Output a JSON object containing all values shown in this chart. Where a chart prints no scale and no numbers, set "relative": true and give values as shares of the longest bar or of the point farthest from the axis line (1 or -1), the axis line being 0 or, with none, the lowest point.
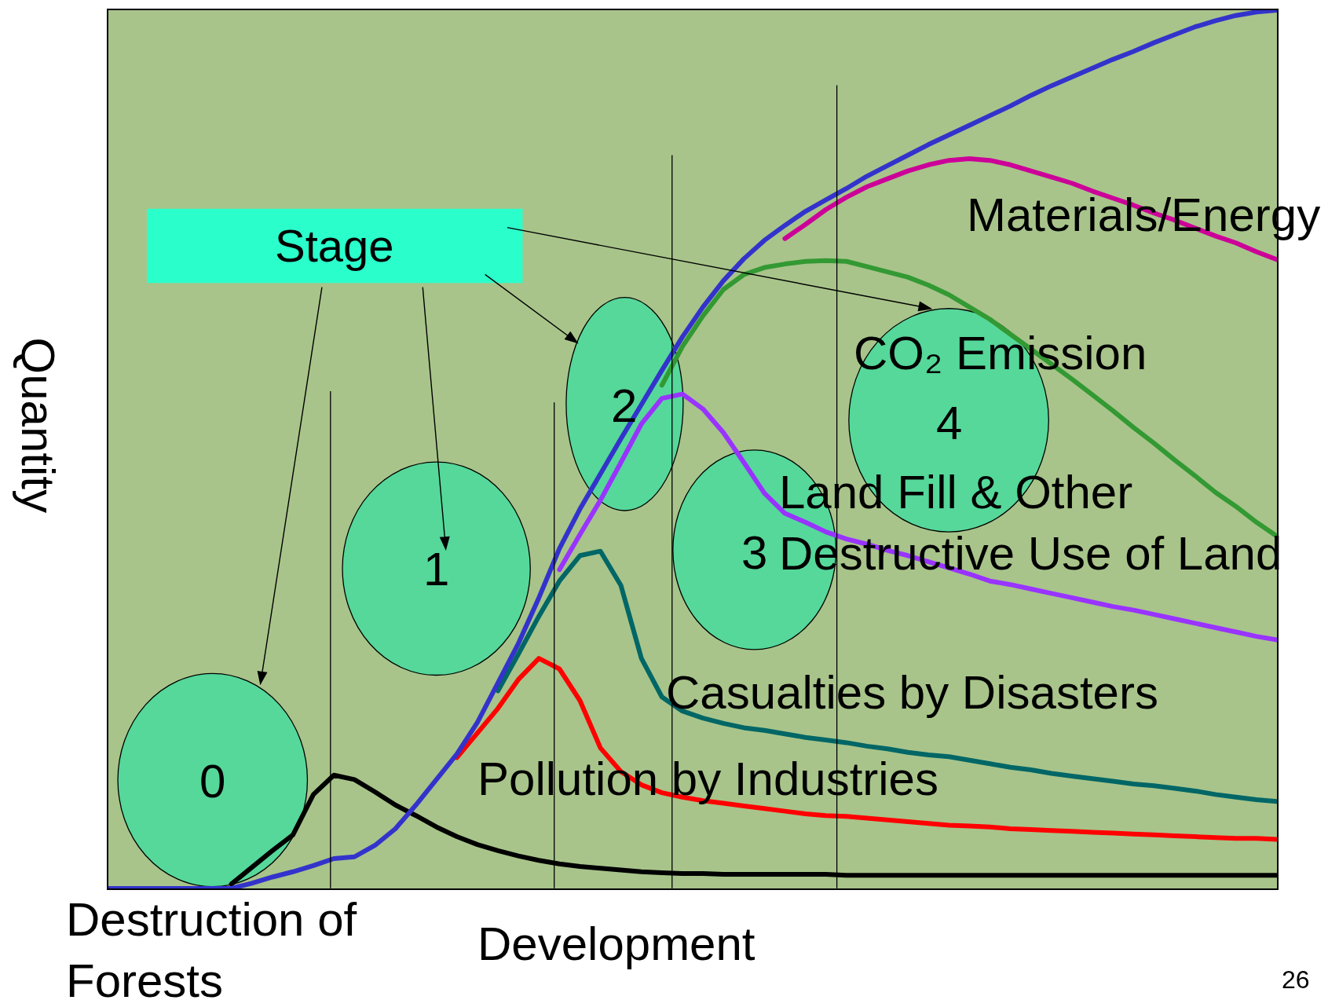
{
  "chart_data": {
    "type": "line",
    "relative": true,
    "xlabel": "Development",
    "ylabel": "Quantity",
    "categories": [
      null,
      null,
      null,
      null,
      null,
      null,
      null,
      null,
      null,
      null,
      null,
      null,
      null,
      null,
      null,
      null,
      null,
      null,
      null,
      null,
      null,
      null,
      null,
      null,
      null,
      null,
      null,
      null,
      null,
      null,
      null,
      null,
      null,
      null,
      null,
      null,
      null,
      null,
      null,
      null,
      null,
      null,
      null,
      null,
      null,
      null,
      null,
      null,
      null,
      null,
      null,
      null,
      null,
      null,
      null,
      null,
      null,
      null
    ],
    "series": [
      {
        "name": "Destruction of Forests",
        "color": "#000000",
        "values": [
          null,
          null,
          null,
          null,
          null,
          null,
          0.005,
          0.024,
          0.043,
          0.061,
          0.107,
          0.129,
          0.124,
          0.11,
          0.095,
          0.083,
          0.07,
          0.059,
          0.05,
          0.043,
          0.037,
          0.032,
          0.028,
          0.025,
          0.023,
          0.021,
          0.019,
          0.018,
          0.017,
          0.017,
          0.016,
          0.016,
          0.016,
          0.016,
          0.016,
          0.016,
          0.015,
          0.015,
          0.015,
          0.015,
          0.015,
          0.015,
          0.015,
          0.015,
          0.015,
          0.015,
          0.015,
          0.015,
          0.015,
          0.015,
          0.015,
          0.015,
          0.015,
          0.015,
          0.015,
          0.015,
          0.015,
          0.015
        ]
      },
      {
        "name": "Pollution by Industries",
        "color": "#ff0000",
        "values": [
          null,
          null,
          null,
          null,
          null,
          null,
          null,
          null,
          null,
          null,
          null,
          null,
          null,
          null,
          null,
          null,
          null,
          0.149,
          0.177,
          0.205,
          0.238,
          0.262,
          0.25,
          0.214,
          0.16,
          0.133,
          0.118,
          0.109,
          0.104,
          0.1,
          0.097,
          0.094,
          0.091,
          0.088,
          0.085,
          0.083,
          0.082,
          0.08,
          0.078,
          0.076,
          0.074,
          0.072,
          0.071,
          0.07,
          0.068,
          0.067,
          0.066,
          0.065,
          0.064,
          0.063,
          0.062,
          0.061,
          0.06,
          0.059,
          0.058,
          0.057,
          0.057,
          0.056
        ]
      },
      {
        "name": "Casualties by Disasters",
        "color": "#006666",
        "values": [
          null,
          null,
          null,
          null,
          null,
          null,
          null,
          null,
          null,
          null,
          null,
          null,
          null,
          null,
          null,
          null,
          null,
          null,
          null,
          0.225,
          0.267,
          0.31,
          0.35,
          0.379,
          0.384,
          0.345,
          0.262,
          0.218,
          0.202,
          0.194,
          0.188,
          0.183,
          0.18,
          0.176,
          0.172,
          0.169,
          0.166,
          0.162,
          0.159,
          0.155,
          0.152,
          0.15,
          0.146,
          0.142,
          0.138,
          0.135,
          0.131,
          0.128,
          0.125,
          0.122,
          0.119,
          0.117,
          0.114,
          0.111,
          0.107,
          0.104,
          0.101,
          0.099
        ]
      },
      {
        "name": "Land Fill & Other Destructive Use of Land",
        "color": "#9933ff",
        "values": [
          null,
          null,
          null,
          null,
          null,
          null,
          null,
          null,
          null,
          null,
          null,
          null,
          null,
          null,
          null,
          null,
          null,
          null,
          null,
          null,
          null,
          null,
          0.363,
          0.403,
          0.442,
          0.485,
          0.529,
          0.558,
          0.563,
          0.546,
          0.519,
          0.485,
          0.45,
          0.427,
          0.417,
          0.406,
          0.398,
          0.392,
          0.385,
          0.379,
          0.372,
          0.365,
          0.358,
          0.35,
          0.346,
          0.341,
          0.336,
          0.331,
          0.326,
          0.321,
          0.317,
          0.312,
          0.307,
          0.302,
          0.297,
          0.292,
          0.287,
          0.283
        ]
      },
      {
        "name": "CO₂ Emission",
        "color": "#339933",
        "values": [
          null,
          null,
          null,
          null,
          null,
          null,
          null,
          null,
          null,
          null,
          null,
          null,
          null,
          null,
          null,
          null,
          null,
          null,
          null,
          null,
          null,
          null,
          null,
          null,
          null,
          null,
          null,
          0.573,
          0.617,
          0.652,
          0.682,
          0.699,
          0.707,
          0.711,
          0.714,
          0.715,
          0.714,
          0.708,
          0.702,
          0.696,
          0.687,
          0.676,
          0.662,
          0.648,
          0.631,
          0.614,
          0.597,
          0.58,
          0.562,
          0.544,
          0.525,
          0.507,
          0.488,
          0.47,
          0.451,
          0.435,
          0.417,
          0.401
        ]
      },
      {
        "name": "Materials/Energy",
        "color": "#cc0099",
        "values": [
          null,
          null,
          null,
          null,
          null,
          null,
          null,
          null,
          null,
          null,
          null,
          null,
          null,
          null,
          null,
          null,
          null,
          null,
          null,
          null,
          null,
          null,
          null,
          null,
          null,
          null,
          null,
          null,
          null,
          null,
          null,
          null,
          null,
          0.74,
          0.756,
          0.773,
          0.787,
          0.799,
          0.808,
          0.817,
          0.824,
          0.829,
          0.831,
          0.829,
          0.824,
          0.817,
          0.81,
          0.803,
          0.794,
          0.786,
          0.778,
          0.769,
          0.761,
          0.752,
          0.743,
          0.735,
          0.725,
          0.716
        ]
      },
      {
        "color": "#3333cc",
        "values": [
          0,
          0,
          0,
          0,
          0,
          0,
          0,
          0.006,
          0.013,
          0.019,
          0.026,
          0.034,
          0.036,
          0.049,
          0.068,
          0.095,
          0.124,
          0.153,
          0.189,
          0.234,
          0.279,
          0.331,
          0.387,
          0.432,
          0.472,
          0.512,
          0.551,
          0.59,
          0.628,
          0.662,
          0.692,
          0.717,
          0.738,
          0.755,
          0.771,
          0.784,
          0.797,
          0.811,
          0.823,
          0.835,
          0.847,
          0.858,
          0.869,
          0.88,
          0.891,
          0.903,
          0.914,
          0.924,
          0.934,
          0.944,
          0.953,
          0.963,
          0.972,
          0.981,
          0.988,
          0.994,
          0.998,
          1.0
        ]
      }
    ],
    "annotations": [
      "0",
      "1",
      "2",
      "3",
      "4",
      "Stage",
      "26"
    ]
  }
}
